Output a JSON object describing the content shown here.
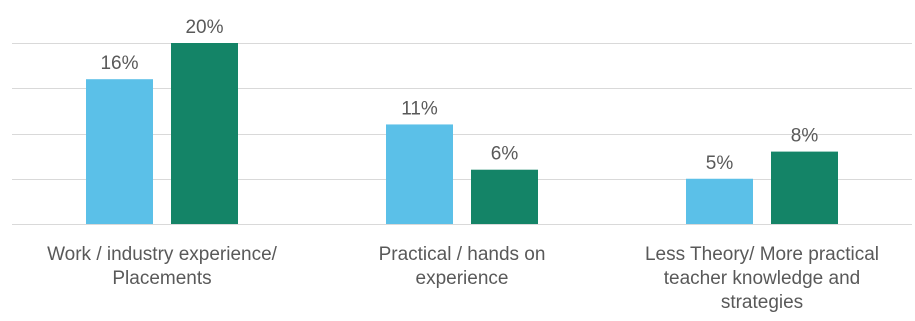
{
  "chart_data": {
    "type": "bar",
    "title": "",
    "xlabel": "",
    "ylabel": "",
    "ylim": [
      0,
      0.2
    ],
    "grid": true,
    "legend": "none",
    "categories": [
      [
        "Work / industry experience/",
        "Placements"
      ],
      [
        "Practical / hands on",
        "experience"
      ],
      [
        "Less Theory/ More practical",
        "teacher knowledge and",
        "strategies"
      ]
    ],
    "series": [
      {
        "values": [
          0.16,
          0.11,
          0.05
        ],
        "labels": [
          "16%",
          "11%",
          "5%"
        ],
        "color": "#5bc0e8"
      },
      {
        "values": [
          0.2,
          0.06,
          0.08
        ],
        "labels": [
          "20%",
          "6%",
          "8%"
        ],
        "color": "#148467"
      }
    ]
  }
}
